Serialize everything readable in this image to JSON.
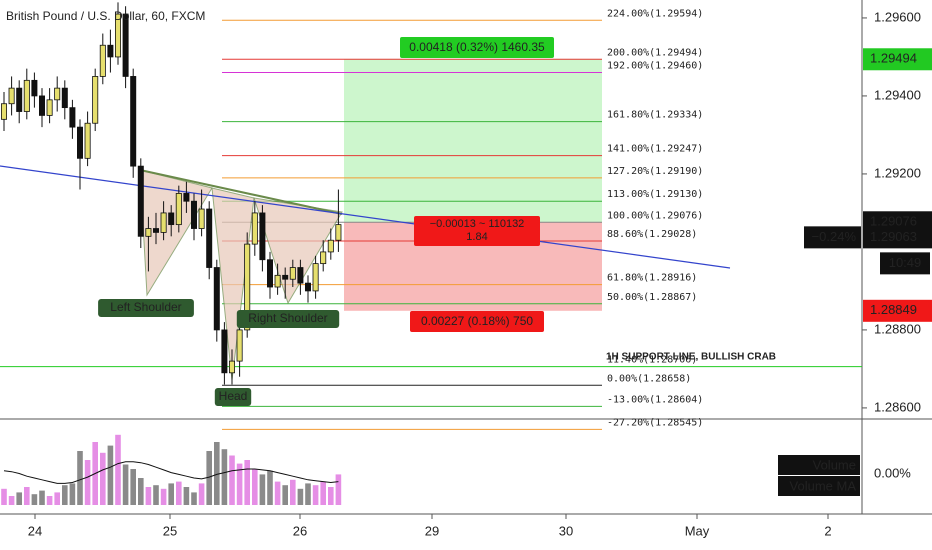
{
  "chart_data": {
    "type": "candlestick",
    "title": "British Pound / U.S. Dollar, 60, FXCM",
    "ylim": [
      1.28569,
      1.29646
    ],
    "yticks": [
      {
        "value": 1.296,
        "label": "1.29600"
      },
      {
        "value": 1.294,
        "label": "1.29400"
      },
      {
        "value": 1.292,
        "label": "1.29200"
      },
      {
        "value": 1.288,
        "label": "1.28800"
      },
      {
        "value": 1.286,
        "label": "1.28600"
      }
    ],
    "x_labels": [
      "24",
      "25",
      "26",
      "29",
      "30",
      "May",
      "2"
    ],
    "open": [
      1.2934,
      1.2938,
      1.2942,
      1.2936,
      1.2944,
      1.294,
      1.2935,
      1.2939,
      1.2942,
      1.2937,
      1.2932,
      1.2924,
      1.2933,
      1.2945,
      1.2953,
      1.295,
      1.2961,
      1.2945,
      1.2922,
      1.2904,
      1.2906,
      1.2905,
      1.291,
      1.2907,
      1.2915,
      1.2913,
      1.2906,
      1.2911,
      1.2896,
      1.288,
      1.2869,
      1.2872,
      1.288,
      1.2902,
      1.291,
      1.2898,
      1.2891,
      1.2894,
      1.2893,
      1.2896,
      1.2892,
      1.289,
      1.2897,
      1.29,
      1.2903
    ],
    "high": [
      1.2941,
      1.2945,
      1.2944,
      1.2947,
      1.2946,
      1.2942,
      1.2942,
      1.2945,
      1.2944,
      1.2939,
      1.2934,
      1.2936,
      1.2947,
      1.2956,
      1.2957,
      1.2964,
      1.2963,
      1.2947,
      1.2924,
      1.2909,
      1.291,
      1.2913,
      1.2912,
      1.2917,
      1.2918,
      1.2915,
      1.2916,
      1.2913,
      1.2898,
      1.2882,
      1.2875,
      1.2883,
      1.2905,
      1.2913,
      1.2912,
      1.29,
      1.2897,
      1.2896,
      1.2898,
      1.2898,
      1.2894,
      1.2899,
      1.2903,
      1.2906,
      1.2916
    ],
    "low": [
      1.2931,
      1.2935,
      1.2933,
      1.2934,
      1.2937,
      1.2932,
      1.2933,
      1.2936,
      1.2934,
      1.2929,
      1.2916,
      1.2922,
      1.2931,
      1.2943,
      1.2946,
      1.2948,
      1.2942,
      1.2919,
      1.2901,
      1.2895,
      1.2902,
      1.2903,
      1.2904,
      1.2905,
      1.291,
      1.2903,
      1.2904,
      1.2893,
      1.2877,
      1.2866,
      1.2866,
      1.2868,
      1.2878,
      1.2899,
      1.2895,
      1.2888,
      1.2889,
      1.2888,
      1.2891,
      1.2889,
      1.2887,
      1.2888,
      1.2895,
      1.2898,
      1.29
    ],
    "close": [
      1.2938,
      1.2942,
      1.2936,
      1.2944,
      1.294,
      1.2935,
      1.2939,
      1.2942,
      1.2937,
      1.2932,
      1.2924,
      1.2933,
      1.2945,
      1.2953,
      1.295,
      1.2961,
      1.2945,
      1.2922,
      1.2904,
      1.2906,
      1.2905,
      1.291,
      1.2907,
      1.2915,
      1.2913,
      1.2906,
      1.2911,
      1.2896,
      1.288,
      1.2869,
      1.2872,
      1.288,
      1.2902,
      1.291,
      1.2898,
      1.2891,
      1.2894,
      1.2893,
      1.2896,
      1.2892,
      1.289,
      1.2897,
      1.29,
      1.2903,
      1.2907
    ],
    "up_color": "#e6df6e",
    "down_color": "#111111",
    "volume": [
      18,
      10,
      14,
      20,
      12,
      16,
      10,
      14,
      22,
      24,
      60,
      50,
      70,
      58,
      66,
      78,
      45,
      40,
      30,
      20,
      22,
      18,
      24,
      26,
      20,
      14,
      24,
      60,
      70,
      62,
      55,
      46,
      50,
      40,
      34,
      38,
      26,
      22,
      28,
      18,
      24,
      22,
      26,
      20,
      34
    ],
    "volume_ma": [
      38,
      37,
      35,
      32,
      30,
      28,
      26,
      24,
      24,
      25,
      28,
      31,
      35,
      39,
      42,
      46,
      48,
      48,
      47,
      45,
      42,
      39,
      36,
      34,
      32,
      30,
      29,
      31,
      34,
      36,
      38,
      39,
      40,
      40,
      39,
      38,
      36,
      34,
      32,
      30,
      28,
      27,
      26,
      25,
      26
    ],
    "volume_up_color": "#e58ee5",
    "volume_down_color": "#8a8a8a",
    "volume_labels": [
      "Volume",
      "Volume MA"
    ],
    "volume_value_label": "0.00%",
    "fib_levels": [
      {
        "label": "224.00%(1.29594)",
        "price": 1.29594,
        "color": "#f39c33"
      },
      {
        "label": "200.00%(1.29494)",
        "price": 1.29494,
        "color": "#e53935"
      },
      {
        "label": "192.00%(1.29460)",
        "price": 1.2946,
        "color": "#d633d6"
      },
      {
        "label": "161.80%(1.29334)",
        "price": 1.29334,
        "color": "#3cb43c"
      },
      {
        "label": "141.00%(1.29247)",
        "price": 1.29247,
        "color": "#e53935"
      },
      {
        "label": "127.20%(1.29190)",
        "price": 1.2919,
        "color": "#f39c33"
      },
      {
        "label": "113.00%(1.29130)",
        "price": 1.2913,
        "color": "#3cb43c"
      },
      {
        "label": "100.00%(1.29076)",
        "price": 1.29076,
        "color": "#888888"
      },
      {
        "label": "88.60%(1.29028)",
        "price": 1.29028,
        "color": "#e53935"
      },
      {
        "label": "61.80%(1.28916)",
        "price": 1.28916,
        "color": "#f39c33"
      },
      {
        "label": "50.00%(1.28867)",
        "price": 1.28867,
        "color": "#3cb43c"
      },
      {
        "label": "11.40%(1.28706)",
        "price": 1.28706,
        "color": "#22cc22"
      },
      {
        "label": "0.00%(1.28658)",
        "price": 1.28658,
        "color": "#222222"
      },
      {
        "label": "-13.00%(1.28604)",
        "price": 1.28604,
        "color": "#3cb43c"
      },
      {
        "label": "-27.20%(1.28545)",
        "price": 1.28545,
        "color": "#f39c33"
      }
    ],
    "position": {
      "target": 1.29494,
      "entry": 1.29076,
      "stop": 1.28849,
      "target_label": "0.00418 (0.32%) 1460.35",
      "center_label": [
        "−0.00013 ~ 110132",
        "1.84"
      ],
      "stop_label": "0.00227 (0.18%) 750"
    },
    "annotations": [
      "Left Shoulder",
      "Head",
      "Right Shoulder",
      "1H SUPPORT LINE, BULLISH CRAB"
    ],
    "price_tags": [
      {
        "value": 1.29494,
        "label": "1.29494",
        "color": "#22c922"
      },
      {
        "value": 1.29076,
        "label": "1.29076",
        "color": "#111111"
      },
      {
        "value": 1.29063,
        "label": "1.29063",
        "color": "#111111"
      },
      {
        "value": 1.28849,
        "label": "1.28849",
        "color": "#f01818"
      }
    ],
    "change_label": "−0.24%",
    "countdown": "10:49"
  }
}
